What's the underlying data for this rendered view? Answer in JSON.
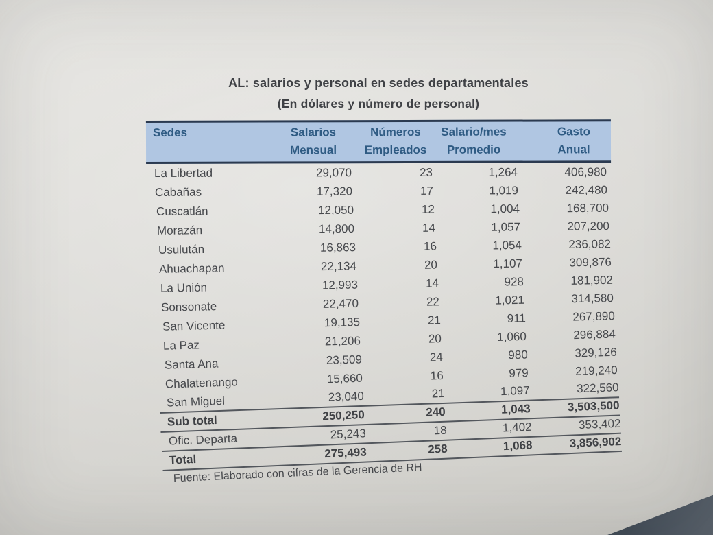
{
  "document": {
    "title": "AL: salarios y personal en sedes departamentales",
    "subtitle": "(En dólares y número de personal)",
    "source": "Fuente: Elaborado con cifras de la Gerencia de RH"
  },
  "table": {
    "headers": [
      {
        "line1": "Sedes",
        "line2": ""
      },
      {
        "line1": "Salarios",
        "line2": "Mensual"
      },
      {
        "line1": "Números",
        "line2": "Empleados"
      },
      {
        "line1": "Salario/mes",
        "line2": "Promedio"
      },
      {
        "line1": "Gasto",
        "line2": "Anual"
      }
    ],
    "rows": [
      {
        "sede": "La Libertad",
        "salarios": "29,070",
        "empleados": "23",
        "promedio": "1,264",
        "gasto": "406,980"
      },
      {
        "sede": "Cabañas",
        "salarios": "17,320",
        "empleados": "17",
        "promedio": "1,019",
        "gasto": "242,480"
      },
      {
        "sede": "Cuscatlán",
        "salarios": "12,050",
        "empleados": "12",
        "promedio": "1,004",
        "gasto": "168,700"
      },
      {
        "sede": "Morazán",
        "salarios": "14,800",
        "empleados": "14",
        "promedio": "1,057",
        "gasto": "207,200"
      },
      {
        "sede": "Usulután",
        "salarios": "16,863",
        "empleados": "16",
        "promedio": "1,054",
        "gasto": "236,082"
      },
      {
        "sede": "Ahuachapan",
        "salarios": "22,134",
        "empleados": "20",
        "promedio": "1,107",
        "gasto": "309,876"
      },
      {
        "sede": "La Unión",
        "salarios": "12,993",
        "empleados": "14",
        "promedio": "928",
        "gasto": "181,902"
      },
      {
        "sede": "Sonsonate",
        "salarios": "22,470",
        "empleados": "22",
        "promedio": "1,021",
        "gasto": "314,580"
      },
      {
        "sede": "San Vicente",
        "salarios": "19,135",
        "empleados": "21",
        "promedio": "911",
        "gasto": "267,890"
      },
      {
        "sede": "La Paz",
        "salarios": "21,206",
        "empleados": "20",
        "promedio": "1,060",
        "gasto": "296,884"
      },
      {
        "sede": "Santa Ana",
        "salarios": "23,509",
        "empleados": "24",
        "promedio": "980",
        "gasto": "329,126"
      },
      {
        "sede": "Chalatenango",
        "salarios": "15,660",
        "empleados": "16",
        "promedio": "979",
        "gasto": "219,240"
      },
      {
        "sede": "San Miguel",
        "salarios": "23,040",
        "empleados": "21",
        "promedio": "1,097",
        "gasto": "322,560"
      }
    ],
    "totals": [
      {
        "sede": "Sub total",
        "salarios": "250,250",
        "empleados": "240",
        "promedio": "1,043",
        "gasto": "3,503,500"
      },
      {
        "sede": "Ofic. Departa",
        "salarios": "25,243",
        "empleados": "18",
        "promedio": "1,402",
        "gasto": "353,402"
      },
      {
        "sede": "Total",
        "salarios": "275,493",
        "empleados": "258",
        "promedio": "1,068",
        "gasto": "3,856,902"
      }
    ]
  },
  "colors": {
    "paper": "#dad9d5",
    "paper_light": "#e4e3df",
    "paper_edge": "#cdccc7",
    "ink": "#47494d",
    "ink_dark": "#3f4145",
    "header_fill": "#b0c6e2",
    "header_ink": "#2f5b83",
    "border_dark": "#2b3a50",
    "rule": "#53575d",
    "desk": "#414b56",
    "desk_light": "#5a636d",
    "tan": "#ab9063"
  }
}
